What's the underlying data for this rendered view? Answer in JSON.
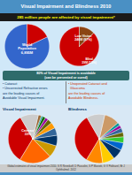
{
  "chart_data": [
    {
      "type": "pie",
      "title": "Visual Impairment and Blindness 2010",
      "subtitle": "285 million people are affected by visual impairment*",
      "values": [
        82,
        18
      ],
      "colors": [
        "#3366cc",
        "#cc0000"
      ],
      "annotations": [
        "World\nPopulation\n6,895M"
      ]
    },
    {
      "type": "pie",
      "values": [
        87,
        13
      ],
      "colors": [
        "#cc0000",
        "#8b4513"
      ],
      "annotations": [
        "Low Vision\n246M (87%)",
        "Blind\n39M (13%)",
        "80% of Visual Impairment is avoidable\n(can be prevented or cured)"
      ]
    },
    {
      "type": "pie",
      "title": "Visual Impairment",
      "values": [
        33,
        21,
        8,
        7,
        5,
        4,
        3,
        2,
        2,
        1,
        2,
        12
      ],
      "colors": [
        "#cc0000",
        "#ff6600",
        "#cc9900",
        "#003366",
        "#336699",
        "#ff9900",
        "#666600",
        "#990099",
        "#006600",
        "#009999",
        "#996633",
        "#cccccc"
      ],
      "annotations": [
        "• Cataract\n• Uncorrected Refractive errors\nare the leading causes of\nAvoidable Visual Impairment.",
        "Cataract\n33%"
      ]
    },
    {
      "type": "pie",
      "title": "Blindness",
      "values": [
        33,
        11,
        8,
        7,
        5,
        4,
        3,
        3,
        2,
        2,
        10,
        12
      ],
      "colors": [
        "#cc0000",
        "#ff8800",
        "#ffcc00",
        "#003366",
        "#0066cc",
        "#33cc33",
        "#666600",
        "#336699",
        "#990099",
        "#009999",
        "#cc9966",
        "#cccccc"
      ],
      "annotations": [
        "• Unoperated Cataract and\n  Glaucoma\nare the leading causes of\nAvoidable Blindness.",
        "Global estimates of visual impairment 2010, S R Resnikoff, D Pascolini, S P Mariotti, G V Pokharel, Br J Ophthalmol. 2012"
      ]
    }
  ]
}
